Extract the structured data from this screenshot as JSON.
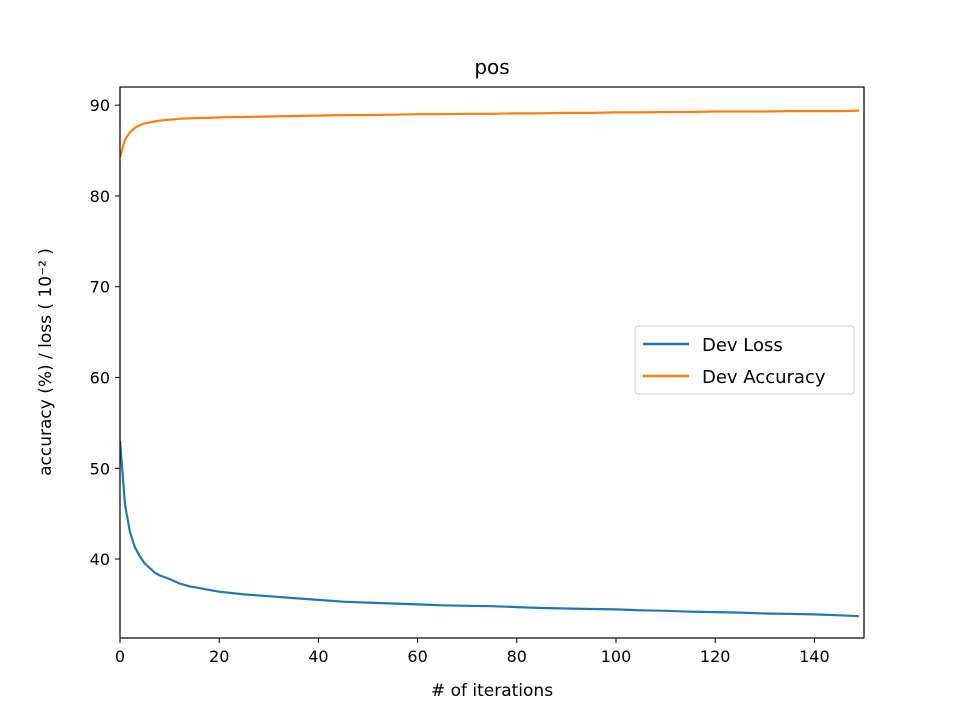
{
  "chart_data": {
    "type": "line",
    "title": "pos",
    "xlabel": "# of iterations",
    "ylabel": "accuracy (%) / loss ( 10⁻² )",
    "xlim": [
      0,
      150
    ],
    "ylim": [
      31.3,
      92.0
    ],
    "xticks": [
      0,
      20,
      40,
      60,
      80,
      100,
      120,
      140
    ],
    "yticks": [
      40,
      50,
      60,
      70,
      80,
      90
    ],
    "grid": false,
    "legend_position": "center-right",
    "series": [
      {
        "name": "Dev Loss",
        "color": "#1f77b4",
        "x": [
          0,
          1,
          2,
          3,
          4,
          5,
          6,
          7,
          8,
          10,
          12,
          14,
          16,
          18,
          20,
          25,
          30,
          35,
          40,
          45,
          50,
          55,
          60,
          65,
          70,
          75,
          80,
          85,
          90,
          95,
          100,
          105,
          110,
          115,
          120,
          125,
          130,
          135,
          140,
          145,
          149
        ],
        "values": [
          53.0,
          46.0,
          43.0,
          41.3,
          40.3,
          39.5,
          39.0,
          38.5,
          38.2,
          37.8,
          37.3,
          37.0,
          36.8,
          36.6,
          36.4,
          36.1,
          35.9,
          35.7,
          35.5,
          35.3,
          35.2,
          35.1,
          35.0,
          34.9,
          34.85,
          34.8,
          34.7,
          34.6,
          34.55,
          34.5,
          34.45,
          34.35,
          34.3,
          34.2,
          34.15,
          34.1,
          34.0,
          33.95,
          33.9,
          33.8,
          33.7
        ]
      },
      {
        "name": "Dev Accuracy",
        "color": "#ff7f0e",
        "x": [
          0,
          1,
          2,
          3,
          4,
          5,
          6,
          7,
          8,
          10,
          12,
          14,
          16,
          18,
          20,
          25,
          30,
          35,
          40,
          45,
          50,
          55,
          60,
          65,
          70,
          75,
          80,
          85,
          90,
          95,
          100,
          105,
          110,
          115,
          120,
          125,
          130,
          135,
          140,
          145,
          149
        ],
        "values": [
          84.3,
          86.2,
          87.0,
          87.5,
          87.8,
          88.0,
          88.1,
          88.2,
          88.3,
          88.4,
          88.5,
          88.55,
          88.6,
          88.6,
          88.65,
          88.7,
          88.75,
          88.8,
          88.85,
          88.9,
          88.9,
          88.95,
          89.0,
          89.0,
          89.05,
          89.05,
          89.1,
          89.1,
          89.15,
          89.15,
          89.2,
          89.2,
          89.25,
          89.25,
          89.3,
          89.3,
          89.3,
          89.35,
          89.35,
          89.35,
          89.4
        ]
      }
    ]
  }
}
